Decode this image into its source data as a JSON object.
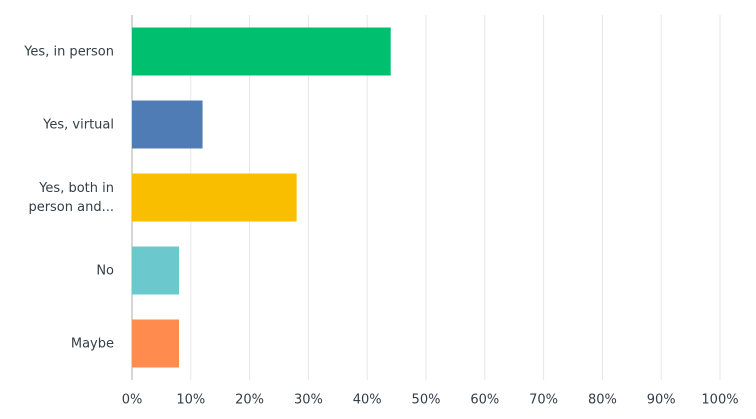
{
  "chart_data": {
    "type": "bar",
    "orientation": "horizontal",
    "categories": [
      "Yes, in person",
      "Yes, virtual",
      "Yes, both in person and...",
      "No",
      "Maybe"
    ],
    "values": [
      44,
      12,
      28,
      8,
      8
    ],
    "colors": [
      "#00bf6f",
      "#507cb6",
      "#f9be00",
      "#6bc8cd",
      "#ff8b4f"
    ],
    "xlim": [
      0,
      100
    ],
    "xticks": [
      {
        "value": 0,
        "label": "0%"
      },
      {
        "value": 10,
        "label": "10%"
      },
      {
        "value": 20,
        "label": "20%"
      },
      {
        "value": 30,
        "label": "30%"
      },
      {
        "value": 40,
        "label": "40%"
      },
      {
        "value": 50,
        "label": "50%"
      },
      {
        "value": 60,
        "label": "60%"
      },
      {
        "value": 70,
        "label": "70%"
      },
      {
        "value": 80,
        "label": "80%"
      },
      {
        "value": 90,
        "label": "90%"
      },
      {
        "value": 100,
        "label": "100%"
      }
    ],
    "grid": true
  }
}
